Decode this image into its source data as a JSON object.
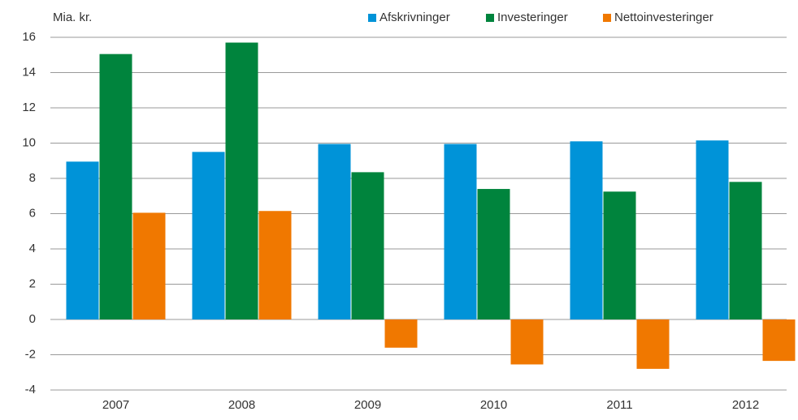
{
  "chart_data": {
    "type": "bar",
    "y_label": "Mia. kr.",
    "categories": [
      "2007",
      "2008",
      "2009",
      "2010",
      "2011",
      "2012"
    ],
    "series": [
      {
        "name": "Afskrivninger",
        "color": "#0093d8",
        "values": [
          8.95,
          9.5,
          9.95,
          9.95,
          10.1,
          10.15
        ]
      },
      {
        "name": "Investeringer",
        "color": "#00843d",
        "values": [
          15.05,
          15.7,
          8.35,
          7.4,
          7.25,
          7.8
        ]
      },
      {
        "name": "Nettoinvesteringer",
        "color": "#f07800",
        "values": [
          6.05,
          6.15,
          -1.6,
          -2.55,
          -2.8,
          -2.35
        ]
      }
    ],
    "ylim": [
      -4,
      16
    ],
    "yticks": [
      -4,
      -2,
      0,
      2,
      4,
      6,
      8,
      10,
      12,
      14,
      16
    ],
    "grid": true,
    "legend": "top"
  }
}
